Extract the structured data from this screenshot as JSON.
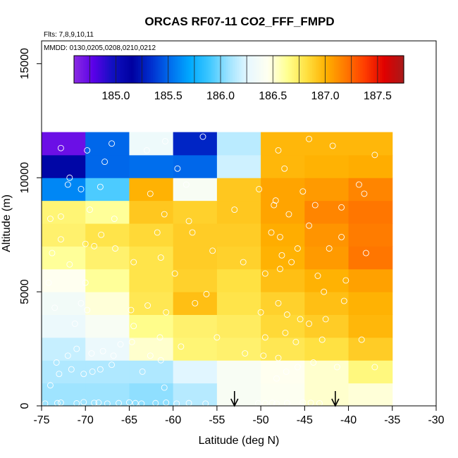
{
  "chart_data": {
    "type": "heatmap",
    "title": "ORCAS RF07-11 CO2_FFF_FMPD",
    "flights_note": "Flts: 7,8,9,10,11",
    "dates_note": "MMDD: 0130,0205,0208,0210,0212",
    "xlabel": "Latitude (deg N)",
    "ylabel": "Altitude (m)",
    "xlim": [
      -75,
      -30
    ],
    "ylim": [
      0,
      16000
    ],
    "xticks": [
      -75,
      -70,
      -65,
      -60,
      -55,
      -50,
      -45,
      -40,
      -35,
      -30
    ],
    "xtick_labels": [
      "-75",
      "-70",
      "-65",
      "-60",
      "-55",
      "-50",
      "-45",
      "-40",
      "-35",
      "-30"
    ],
    "yticks": [
      0,
      5000,
      10000,
      15000
    ],
    "ytick_labels": [
      "0",
      "5000",
      "10000",
      "15000"
    ],
    "colorbar": {
      "min": 184.6,
      "max": 187.75,
      "ticks": [
        185.0,
        185.5,
        186.0,
        186.5,
        187.0,
        187.5
      ],
      "tick_labels": [
        "185.0",
        "185.5",
        "186.0",
        "186.5",
        "187.0",
        "187.5"
      ],
      "colors": [
        "#8a2be2",
        "#5a00e8",
        "#1010c0",
        "#0000a0",
        "#0030d0",
        "#0070ee",
        "#00aaff",
        "#40c8ff",
        "#a0e4ff",
        "#e8f8ff",
        "#fffff0",
        "#ffff90",
        "#ffe040",
        "#ffb000",
        "#ff7800",
        "#ff3c00",
        "#e00000",
        "#a81a1a"
      ]
    },
    "lat_bins": [
      -75,
      -70,
      -65,
      -60,
      -55,
      -50,
      -45,
      -40,
      -35
    ],
    "alt_bins": [
      0,
      1000,
      2000,
      3000,
      4000,
      5000,
      6000,
      7000,
      8000,
      9000,
      10000,
      11000,
      12000
    ],
    "grid_values": [
      [
        186.08,
        186.08,
        186.05,
        186.14,
        186.4,
        186.44,
        186.52,
        186.5
      ],
      [
        186.12,
        186.12,
        186.12,
        186.25,
        186.4,
        186.45,
        186.52,
        186.68
      ],
      [
        186.18,
        186.3,
        186.52,
        186.7,
        186.72,
        186.78,
        186.82,
        186.9
      ],
      [
        186.3,
        186.4,
        186.65,
        186.72,
        186.75,
        186.85,
        186.9,
        186.98
      ],
      [
        186.35,
        186.5,
        186.78,
        186.95,
        186.8,
        186.88,
        186.95,
        187.0
      ],
      [
        186.45,
        186.62,
        186.8,
        186.88,
        186.82,
        186.95,
        187.0,
        187.06
      ],
      [
        186.62,
        186.72,
        186.8,
        186.9,
        186.88,
        187.0,
        187.08,
        187.2
      ],
      [
        186.72,
        186.8,
        186.85,
        186.9,
        186.9,
        187.02,
        187.1,
        187.18
      ],
      [
        186.7,
        186.62,
        186.92,
        186.88,
        186.92,
        187.05,
        187.15,
        187.2
      ],
      [
        185.6,
        185.92,
        187.0,
        186.4,
        186.92,
        187.05,
        187.08,
        187.15
      ],
      [
        185.18,
        185.5,
        185.52,
        185.5,
        186.2,
        186.98,
        187.0,
        187.02
      ],
      [
        184.72,
        185.5,
        186.32,
        185.3,
        186.15,
        186.98,
        186.98,
        186.98
      ]
    ],
    "points": [
      [
        -74.6,
        100
      ],
      [
        -73.2,
        120
      ],
      [
        -72.8,
        140
      ],
      [
        -71.0,
        110
      ],
      [
        -70.2,
        160
      ],
      [
        -69.0,
        130
      ],
      [
        -68.5,
        140
      ],
      [
        -67.5,
        100
      ],
      [
        -66.2,
        120
      ],
      [
        -65.0,
        150
      ],
      [
        -64.3,
        120
      ],
      [
        -63.6,
        100
      ],
      [
        -62.0,
        120
      ],
      [
        -60.8,
        140
      ],
      [
        -59.6,
        100
      ],
      [
        -58.2,
        120
      ],
      [
        -56.3,
        100
      ],
      [
        -50.3,
        110
      ],
      [
        -49.5,
        120
      ],
      [
        -48.7,
        130
      ],
      [
        -48.2,
        100
      ],
      [
        -47.0,
        120
      ],
      [
        -45.2,
        150
      ],
      [
        -44.3,
        130
      ],
      [
        -43.3,
        110
      ],
      [
        -74.0,
        900
      ],
      [
        -73.0,
        1400
      ],
      [
        -71.6,
        1600
      ],
      [
        -70.2,
        1400
      ],
      [
        -69.2,
        1500
      ],
      [
        -68.3,
        1600
      ],
      [
        -67.0,
        1800
      ],
      [
        -63.5,
        1500
      ],
      [
        -61.0,
        800
      ],
      [
        -48.2,
        1200
      ],
      [
        -47.1,
        1500
      ],
      [
        -45.8,
        1700
      ],
      [
        -44.0,
        1900
      ],
      [
        -41.3,
        1700
      ],
      [
        -37.0,
        1700
      ],
      [
        -73.3,
        1900
      ],
      [
        -72.0,
        2200
      ],
      [
        -71.0,
        2500
      ],
      [
        -69.3,
        2300
      ],
      [
        -68.0,
        2400
      ],
      [
        -66.8,
        2200
      ],
      [
        -64.7,
        2800
      ],
      [
        -62.6,
        2200
      ],
      [
        -61.4,
        2000
      ],
      [
        -59.1,
        2600
      ],
      [
        -51.8,
        2300
      ],
      [
        -49.7,
        2200
      ],
      [
        -48.0,
        2100
      ],
      [
        -46.0,
        2800
      ],
      [
        -43.0,
        2900
      ],
      [
        -38.5,
        2900
      ],
      [
        -71.2,
        3600
      ],
      [
        -66.0,
        2700
      ],
      [
        -64.5,
        3500
      ],
      [
        -61.5,
        3000
      ],
      [
        -55.0,
        3000
      ],
      [
        -49.5,
        3000
      ],
      [
        -47.2,
        3200
      ],
      [
        -44.5,
        3600
      ],
      [
        -42.6,
        3800
      ],
      [
        -73.5,
        4300
      ],
      [
        -70.5,
        4500
      ],
      [
        -69.8,
        4200
      ],
      [
        -64.8,
        4200
      ],
      [
        -62.9,
        4400
      ],
      [
        -60.8,
        4100
      ],
      [
        -57.5,
        4500
      ],
      [
        -56.2,
        4900
      ],
      [
        -50.0,
        4100
      ],
      [
        -48.0,
        4500
      ],
      [
        -47.0,
        4000
      ],
      [
        -45.5,
        3800
      ],
      [
        -42.8,
        5000
      ],
      [
        -40.5,
        4600
      ],
      [
        -74.2,
        5400
      ],
      [
        -70.0,
        5400
      ],
      [
        -64.5,
        6300
      ],
      [
        -59.8,
        5800
      ],
      [
        -52.0,
        6300
      ],
      [
        -49.5,
        5800
      ],
      [
        -47.8,
        6000
      ],
      [
        -46.5,
        6300
      ],
      [
        -43.5,
        5700
      ],
      [
        -40.3,
        5500
      ],
      [
        -73.8,
        6700
      ],
      [
        -71.8,
        6200
      ],
      [
        -69.0,
        7000
      ],
      [
        -66.6,
        6900
      ],
      [
        -61.4,
        6500
      ],
      [
        -55.5,
        6800
      ],
      [
        -47.6,
        6600
      ],
      [
        -45.8,
        6900
      ],
      [
        -42.2,
        6900
      ],
      [
        -38.0,
        6700
      ],
      [
        -72.8,
        7300
      ],
      [
        -70.0,
        7100
      ],
      [
        -68.2,
        7500
      ],
      [
        -61.8,
        7600
      ],
      [
        -57.8,
        7600
      ],
      [
        -48.8,
        7600
      ],
      [
        -47.8,
        7400
      ],
      [
        -44.5,
        7900
      ],
      [
        -40.8,
        7400
      ],
      [
        -74.0,
        8200
      ],
      [
        -72.8,
        8300
      ],
      [
        -69.5,
        8600
      ],
      [
        -66.7,
        8200
      ],
      [
        -61.0,
        8400
      ],
      [
        -58.2,
        8100
      ],
      [
        -53.0,
        8600
      ],
      [
        -48.5,
        8800
      ],
      [
        -46.8,
        8400
      ],
      [
        -43.8,
        8800
      ],
      [
        -40.8,
        8700
      ],
      [
        -38.2,
        9300
      ],
      [
        -72.0,
        9700
      ],
      [
        -70.5,
        9500
      ],
      [
        -68.3,
        9600
      ],
      [
        -62.6,
        9300
      ],
      [
        -58.5,
        9700
      ],
      [
        -50.2,
        9500
      ],
      [
        -48.3,
        9000
      ],
      [
        -45.2,
        9400
      ],
      [
        -38.8,
        9700
      ],
      [
        -71.8,
        10000
      ],
      [
        -67.8,
        10700
      ],
      [
        -59.5,
        10400
      ],
      [
        -47.3,
        10400
      ],
      [
        -72.8,
        11300
      ],
      [
        -69.8,
        11200
      ],
      [
        -67.0,
        11500
      ],
      [
        -63.0,
        11200
      ],
      [
        -60.9,
        11600
      ],
      [
        -56.6,
        11800
      ],
      [
        -48.0,
        11200
      ],
      [
        -44.5,
        11700
      ],
      [
        -41.8,
        11400
      ],
      [
        -37.0,
        11000
      ]
    ],
    "flight_arrows": [
      -53.0,
      -41.5
    ]
  }
}
